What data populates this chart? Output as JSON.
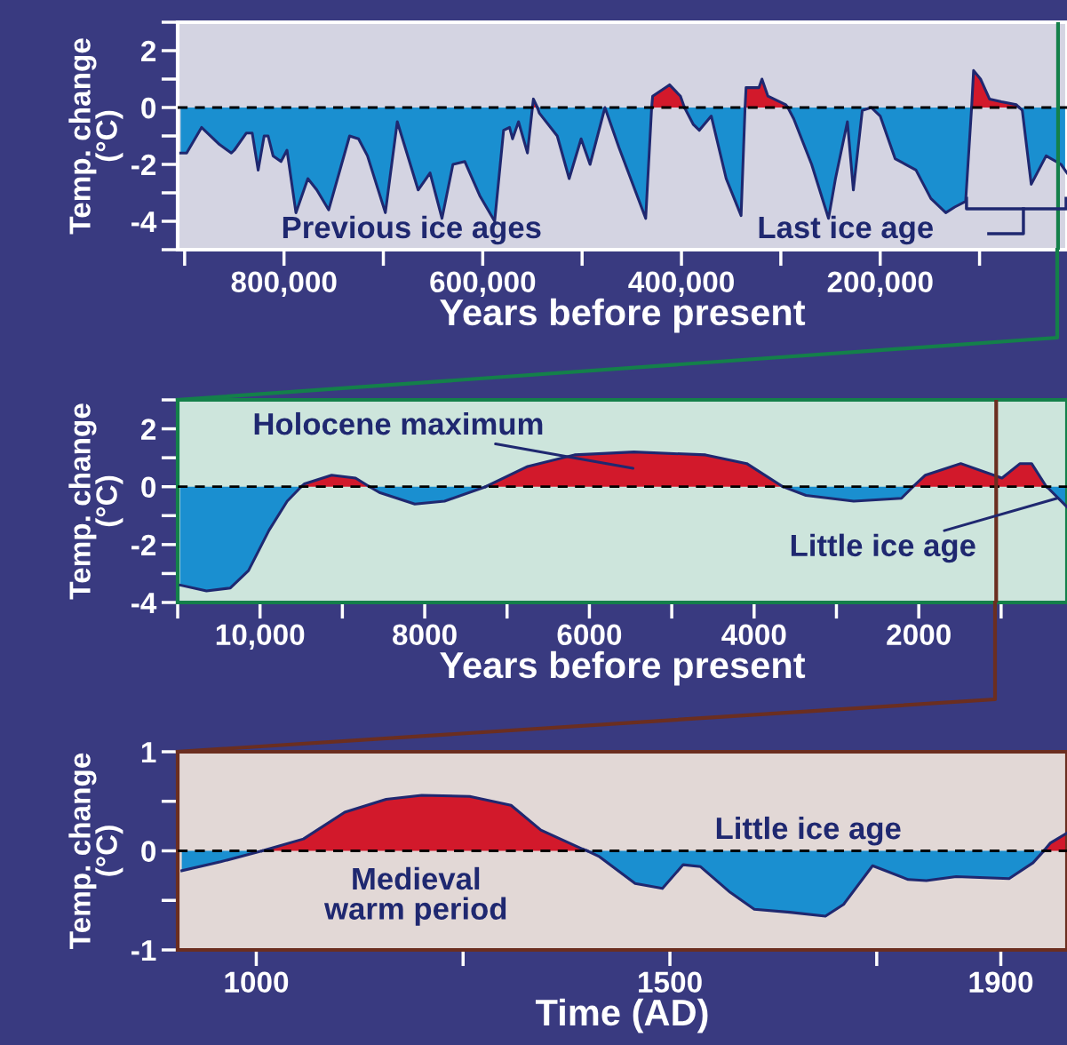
{
  "chart_data": [
    {
      "type": "area",
      "xlabel": "Years before present",
      "ylabel": "Temp. change\n(°C)",
      "xlim": [
        907000,
        12000
      ],
      "ylim": [
        -5,
        3
      ],
      "xticks": [
        {
          "value": 800000,
          "label": "800,000"
        },
        {
          "value": 600000,
          "label": "600,000"
        },
        {
          "value": 400000,
          "label": "400,000"
        },
        {
          "value": 200000,
          "label": "200,000"
        }
      ],
      "yticks": [
        -4,
        -2,
        0,
        2
      ],
      "series": [
        {
          "color": "#1a8fd0",
          "x": [
            904000,
            898000,
            883000,
            865000,
            853000,
            850000,
            838000,
            832000,
            826000,
            820000,
            816000,
            811000,
            803000,
            797000,
            788000,
            776000,
            767000,
            755000,
            734000,
            725000,
            716000,
            698000,
            686000,
            665000,
            653000,
            641000,
            630000,
            618000,
            603000,
            588000,
            579000,
            573000,
            570000,
            564000,
            555000,
            550000,
            549000,
            545000,
            543000,
            525000,
            513000,
            501000,
            492000,
            477000,
            463000,
            436000,
            430000,
            412000,
            397000,
            388000,
            382000,
            370000,
            355000,
            340000,
            336000,
            319000,
            293000,
            287000,
            269000,
            252000,
            245000,
            233000,
            227000,
            218000,
            209000,
            200000,
            185000,
            164000,
            149000,
            134000,
            125000,
            114000,
            108000,
            90000,
            60000,
            57000,
            48000,
            33000,
            18000,
            12000
          ],
          "values": [
            -1.6,
            -1.6,
            -0.7,
            -1.3,
            -1.6,
            -1.5,
            -0.9,
            -0.9,
            -2.2,
            -1.0,
            -1.0,
            -1.7,
            -1.9,
            -1.5,
            -3.7,
            -2.5,
            -2.9,
            -3.6,
            -1.0,
            -1.1,
            -1.7,
            -3.7,
            -0.5,
            -2.9,
            -2.3,
            -3.9,
            -2.0,
            -1.9,
            -3.1,
            -4.0,
            -0.8,
            -0.7,
            -1.1,
            -0.5,
            -1.6,
            0.0,
            null,
            0.0,
            -0.2,
            -1.0,
            -2.5,
            -1.1,
            -2.0,
            0.0,
            -1.4,
            -3.9,
            0.0,
            null,
            0.0,
            -0.6,
            -0.8,
            -0.3,
            -2.5,
            -3.8,
            0.0,
            null,
            0.0,
            -0.4,
            -2.0,
            -3.9,
            -2.5,
            -0.5,
            -2.9,
            -0.1,
            0.0,
            -0.3,
            -1.8,
            -2.2,
            -3.2,
            -3.7,
            -3.5,
            -3.3,
            0.0,
            null,
            0.0,
            -0.1,
            -2.7,
            -1.7,
            -2.0,
            -2.3
          ]
        },
        {
          "color": "#d2192b",
          "x": [
            550000,
            549000,
            545000,
            450000,
            430000,
            429000,
            412000,
            401000,
            397000,
            360000,
            336000,
            335000,
            322000,
            319000,
            313000,
            295000,
            293000,
            150000,
            108000,
            106000,
            99000,
            90000,
            78000,
            63000,
            60000
          ],
          "values": [
            0.0,
            0.3,
            0.0,
            null,
            0.0,
            0.4,
            0.8,
            0.4,
            0.0,
            null,
            0.0,
            0.7,
            0.7,
            1.0,
            0.4,
            0.1,
            0.0,
            null,
            0.0,
            1.3,
            1.0,
            0.3,
            0.2,
            0.1,
            0.0
          ]
        }
      ],
      "ref_lines": [
        {
          "axis": "y",
          "value": 0,
          "line_style": "dashed",
          "color": "#000000"
        },
        {
          "axis": "x",
          "value": 21000,
          "line_style": "solid",
          "color": "#14804a"
        }
      ],
      "annotations": [
        "Previous ice ages",
        "Last ice age"
      ]
    },
    {
      "type": "area",
      "xlabel": "Years before present",
      "ylabel": "Temp. change\n(°C)",
      "xlim": [
        11000,
        200
      ],
      "ylim": [
        -4,
        3
      ],
      "xticks": [
        {
          "value": 10000,
          "label": "10,000"
        },
        8000,
        6000,
        4000,
        2000
      ],
      "yticks": [
        -4,
        -2,
        0,
        2
      ],
      "series": [
        {
          "color": "#1a8fd0",
          "x": [
            10970,
            10650,
            10360,
            10140,
            9890,
            9670,
            9500,
            9130,
            8670,
            8550,
            8120,
            7760,
            7260,
            5460,
            3650,
            3370,
            2790,
            2210,
            2070,
            1490,
            450,
            410,
            200
          ],
          "values": [
            -3.4,
            -3.6,
            -3.5,
            -2.9,
            -1.5,
            -0.5,
            0.0,
            null,
            0.0,
            -0.2,
            -0.6,
            -0.5,
            0.0,
            null,
            0.0,
            -0.3,
            -0.5,
            -0.4,
            0.0,
            null,
            0.0,
            -0.1,
            -0.7
          ]
        },
        {
          "color": "#d2192b",
          "x": [
            9500,
            9460,
            9130,
            8840,
            8670,
            8000,
            7260,
            6750,
            6180,
            5460,
            4590,
            4090,
            3650,
            3000,
            2070,
            1920,
            1490,
            990,
            770,
            630,
            450
          ],
          "values": [
            0.0,
            0.1,
            0.4,
            0.3,
            0.0,
            null,
            0.0,
            0.7,
            1.1,
            1.2,
            1.1,
            0.8,
            0.0,
            null,
            0.0,
            0.4,
            0.8,
            0.3,
            0.8,
            0.8,
            0.0
          ]
        }
      ],
      "ref_lines": [
        {
          "axis": "y",
          "value": 0,
          "line_style": "dashed",
          "color": "#000000"
        },
        {
          "axis": "x",
          "value": 1060,
          "line_style": "solid",
          "color": "#6b2e20"
        }
      ],
      "annotations": [
        "Holocene maximum",
        {
          "text": "Little ice age",
          "x": 320,
          "y": -0.4
        }
      ]
    },
    {
      "type": "area",
      "xlabel": "Time (AD)",
      "ylabel": "Temp. change\n(°C)",
      "xlim": [
        905,
        1980
      ],
      "ylim": [
        -1,
        1
      ],
      "xticks": [
        1000,
        1500,
        1900
      ],
      "yticks": [
        -1,
        0,
        1
      ],
      "series": [
        {
          "color": "#1a8fd0",
          "x": [
            910,
            957,
            1007,
            1200,
            1400,
            1415,
            1458,
            1491,
            1516,
            1537,
            1573,
            1602,
            1645,
            1688,
            1710,
            1745,
            1788,
            1810,
            1846,
            1910,
            1939,
            1952
          ],
          "values": [
            -0.2,
            -0.11,
            0.0,
            null,
            0.0,
            -0.06,
            -0.33,
            -0.38,
            -0.14,
            -0.16,
            -0.42,
            -0.59,
            -0.62,
            -0.66,
            -0.54,
            -0.15,
            -0.29,
            -0.3,
            -0.26,
            -0.28,
            -0.12,
            0.0
          ]
        },
        {
          "color": "#d2192b",
          "x": [
            1007,
            1057,
            1107,
            1157,
            1200,
            1258,
            1308,
            1344,
            1394,
            1400,
            1700,
            1952,
            1960,
            1980
          ],
          "values": [
            0.0,
            0.12,
            0.39,
            0.52,
            0.56,
            0.55,
            0.46,
            0.21,
            0.02,
            0.0,
            null,
            0.0,
            0.08,
            0.18
          ]
        }
      ],
      "ref_lines": [
        {
          "axis": "y",
          "value": 0,
          "line_style": "dashed",
          "color": "#000000"
        }
      ],
      "annotations": [
        "Little ice age",
        "Medieval\nwarm period"
      ]
    }
  ]
}
